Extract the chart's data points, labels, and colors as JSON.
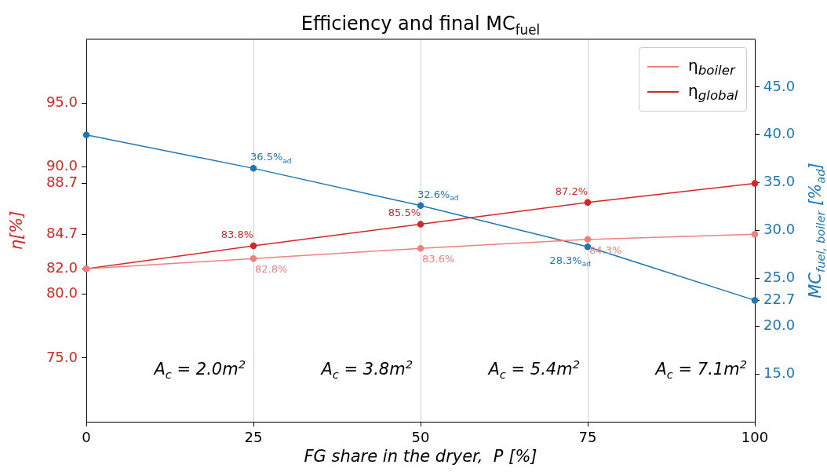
{
  "chart_data": {
    "type": "line",
    "title": "Efficiency and final MC$_{fuel}$",
    "xlabel": "FG share in the dryer,  P [%]",
    "ylabel": "η[%]",
    "y2label": "MC$_{fuel, boiler}$ [%$_{ad}$]",
    "x": [
      0,
      25,
      50,
      75,
      100
    ],
    "xlim": [
      0,
      100
    ],
    "xticks": [
      0,
      25,
      50,
      75,
      100
    ],
    "ylim": [
      70,
      100
    ],
    "yticks": [
      {
        "value": 75,
        "label": "75.0"
      },
      {
        "value": 80,
        "label": "80.0"
      },
      {
        "value": 82,
        "label": "82.0"
      },
      {
        "value": 84.7,
        "label": "84.7"
      },
      {
        "value": 88.7,
        "label": "88.7"
      },
      {
        "value": 90,
        "label": "90.0"
      },
      {
        "value": 95,
        "label": "95.0"
      }
    ],
    "y2lim": [
      10,
      50
    ],
    "y2ticks": [
      {
        "value": 15,
        "label": "15.0"
      },
      {
        "value": 20,
        "label": "20.0"
      },
      {
        "value": 22.7,
        "label": "22.7"
      },
      {
        "value": 25,
        "label": "25.0"
      },
      {
        "value": 30,
        "label": "30.0"
      },
      {
        "value": 35,
        "label": "35.0"
      },
      {
        "value": 40,
        "label": "40.0"
      },
      {
        "value": 45,
        "label": "45.0"
      }
    ],
    "series": [
      {
        "name": "η$_{boiler}$",
        "color": "#f08080",
        "values": [
          82,
          82.8,
          83.6,
          84.3,
          84.7
        ],
        "value_labels": [
          null,
          "82.8%",
          "83.6%",
          "84.3%",
          null
        ]
      },
      {
        "name": "η$_{global}$",
        "color": "#d62728",
        "values": [
          82,
          83.8,
          85.5,
          87.2,
          88.7
        ],
        "value_labels": [
          null,
          "83.8%",
          "85.5%",
          "87.2%",
          null
        ]
      },
      {
        "color": "#1f77b4",
        "axis": "y2",
        "values": [
          40,
          36.5,
          32.6,
          28.3,
          22.7
        ],
        "value_labels": [
          null,
          "36.5%$_{ad}$",
          "32.6%$_{ad}$",
          "28.3%$_{ad}$",
          null
        ]
      }
    ],
    "annotations": [
      "A$_{c}$ = 2.0m$^{2}$",
      "A$_{c}$ = 3.8m$^{2}$",
      "A$_{c}$ = 5.4m$^{2}$",
      "A$_{c}$ = 7.1m$^{2}$"
    ],
    "grid": "x",
    "legend": "top right",
    "marker": "circle"
  }
}
